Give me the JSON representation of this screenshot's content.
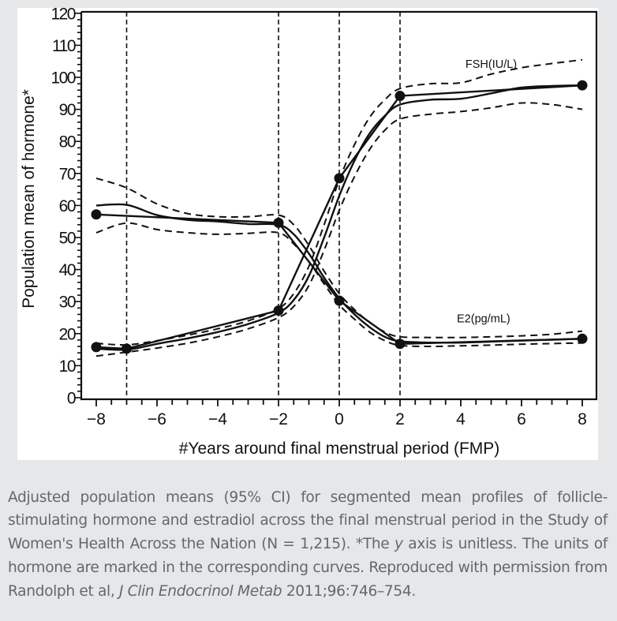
{
  "chart_data": {
    "type": "line",
    "title": "",
    "xlabel": "#Years around final menstrual period (FMP)",
    "ylabel": "Population mean of hormone*",
    "xlim": [
      -8.5,
      8.5
    ],
    "ylim": [
      0,
      120
    ],
    "x_ticks": [
      -8,
      -6,
      -4,
      -2,
      0,
      2,
      4,
      6,
      8
    ],
    "x_tick_labels": [
      "−8",
      "−6",
      "−4",
      "−2",
      "0",
      "2",
      "4",
      "6",
      "8"
    ],
    "y_ticks": [
      0,
      10,
      20,
      30,
      40,
      50,
      60,
      70,
      80,
      90,
      100,
      110,
      120
    ],
    "y_tick_labels": [
      "0",
      "10",
      "20",
      "30",
      "40",
      "50",
      "60",
      "70",
      "80",
      "90",
      "100",
      "110",
      "120"
    ],
    "vertical_reference_lines": [
      -7,
      -2,
      0,
      2
    ],
    "grid": false,
    "legend": "none (curves labelled inline)",
    "series": [
      {
        "name": "FSH(IU/L)",
        "label_position": {
          "x": 5.0,
          "y": 103
        },
        "segmented_means": {
          "x": [
            -8,
            -7,
            -2,
            0,
            2,
            8
          ],
          "y": [
            15.8,
            15.3,
            27.2,
            68.5,
            94.2,
            97.5
          ]
        },
        "smoothed_mean": {
          "x": [
            -8,
            -7,
            -6,
            -5,
            -4,
            -3,
            -2,
            -1.5,
            -1,
            -0.5,
            0,
            0.5,
            1,
            1.5,
            2,
            3,
            4,
            5,
            6,
            7,
            8
          ],
          "y": [
            15.3,
            15.0,
            16.8,
            18.5,
            20.5,
            23.0,
            26.5,
            30.5,
            38.0,
            50.0,
            63.0,
            74.0,
            82.5,
            88.0,
            91.5,
            93.0,
            93.3,
            95.0,
            96.8,
            97.3,
            97.5
          ]
        },
        "ci_upper": {
          "x": [
            -8,
            -7,
            -6,
            -5,
            -4,
            -3,
            -2,
            -1.5,
            -1,
            -0.5,
            0,
            0.5,
            1,
            1.5,
            2,
            3,
            4,
            5,
            6,
            7,
            8
          ],
          "y": [
            17.0,
            16.5,
            17.8,
            19.5,
            21.5,
            24.0,
            27.8,
            32.5,
            41.0,
            54.0,
            68.0,
            79.0,
            87.5,
            93.0,
            96.5,
            98.0,
            98.3,
            101.0,
            103.0,
            104.3,
            105.5
          ]
        },
        "ci_lower": {
          "x": [
            -8,
            -7,
            -6,
            -5,
            -4,
            -3,
            -2,
            -1.5,
            -1,
            -0.5,
            0,
            0.5,
            1,
            1.5,
            2,
            3,
            4,
            5,
            6,
            7,
            8
          ],
          "y": [
            13.0,
            14.2,
            15.5,
            17.0,
            19.0,
            21.5,
            25.0,
            28.5,
            35.0,
            46.0,
            58.5,
            69.0,
            77.5,
            83.5,
            87.0,
            88.5,
            89.3,
            90.5,
            92.0,
            91.5,
            90.0
          ]
        }
      },
      {
        "name": "E2(pg/mL)",
        "label_position": {
          "x": 4.75,
          "y": 23.5
        },
        "segmented_means": {
          "x": [
            -8,
            -2,
            0,
            2,
            8
          ],
          "y": [
            57.2,
            54.6,
            30.3,
            16.8,
            18.4
          ]
        },
        "smoothed_mean": {
          "x": [
            -8,
            -7,
            -6,
            -5,
            -4,
            -3,
            -2,
            -1.5,
            -1,
            -0.5,
            0,
            0.5,
            1,
            1.5,
            2,
            3,
            4,
            5,
            6,
            7,
            8
          ],
          "y": [
            60.0,
            60.2,
            57.0,
            55.5,
            55.0,
            54.2,
            54.0,
            51.0,
            45.0,
            37.5,
            31.0,
            26.0,
            22.0,
            19.0,
            17.6,
            17.2,
            17.2,
            17.5,
            17.8,
            18.1,
            18.4
          ]
        },
        "ci_upper": {
          "x": [
            -8,
            -7,
            -6,
            -5,
            -4,
            -3,
            -2,
            -1.5,
            -1,
            -0.5,
            0,
            0.5,
            1,
            1.5,
            2,
            3,
            4,
            5,
            6,
            7,
            8
          ],
          "y": [
            68.5,
            65.5,
            60.5,
            57.5,
            56.5,
            56.5,
            57.0,
            54.0,
            47.5,
            39.5,
            32.5,
            27.5,
            23.5,
            20.5,
            19.0,
            18.8,
            18.8,
            19.0,
            19.3,
            19.8,
            20.8
          ]
        },
        "ci_lower": {
          "x": [
            -8,
            -7,
            -6,
            -5,
            -4,
            -3,
            -2,
            -1.5,
            -1,
            -0.5,
            0,
            0.5,
            1,
            1.5,
            2,
            3,
            4,
            5,
            6,
            7,
            8
          ],
          "y": [
            51.5,
            54.5,
            52.5,
            51.5,
            51.0,
            51.3,
            51.5,
            48.0,
            42.5,
            35.5,
            29.0,
            24.5,
            20.5,
            17.8,
            16.3,
            16.0,
            16.2,
            16.4,
            16.7,
            16.9,
            17.1
          ]
        }
      }
    ]
  },
  "figure": {
    "y_axis_title": "Population mean of hormone*",
    "x_axis_title": "#Years around final menstrual period (FMP)",
    "fsh_label": "FSH(IU/L)",
    "e2_label": "E2(pg/mL)"
  },
  "caption": {
    "part1": "Adjusted population means (95% CI) for segmented mean profiles of follicle-stimulating hormone and estradiol across the final menstrual period in the Study of Women's Health Across the Nation (N = 1,215). *The ",
    "italic_y": "y",
    "part2": " axis is unitless. The units of hormone are marked in the corresponding curves. Reproduced with permission from Randolph et al, ",
    "italic_journal": "J Clin Endocrinol Metab",
    "part3": " 2011;96:746–754."
  },
  "colors": {
    "page_background": "#e6e7e9",
    "figure_background": "#ffffff",
    "ink": "#111111",
    "caption_text": "#66676a"
  }
}
